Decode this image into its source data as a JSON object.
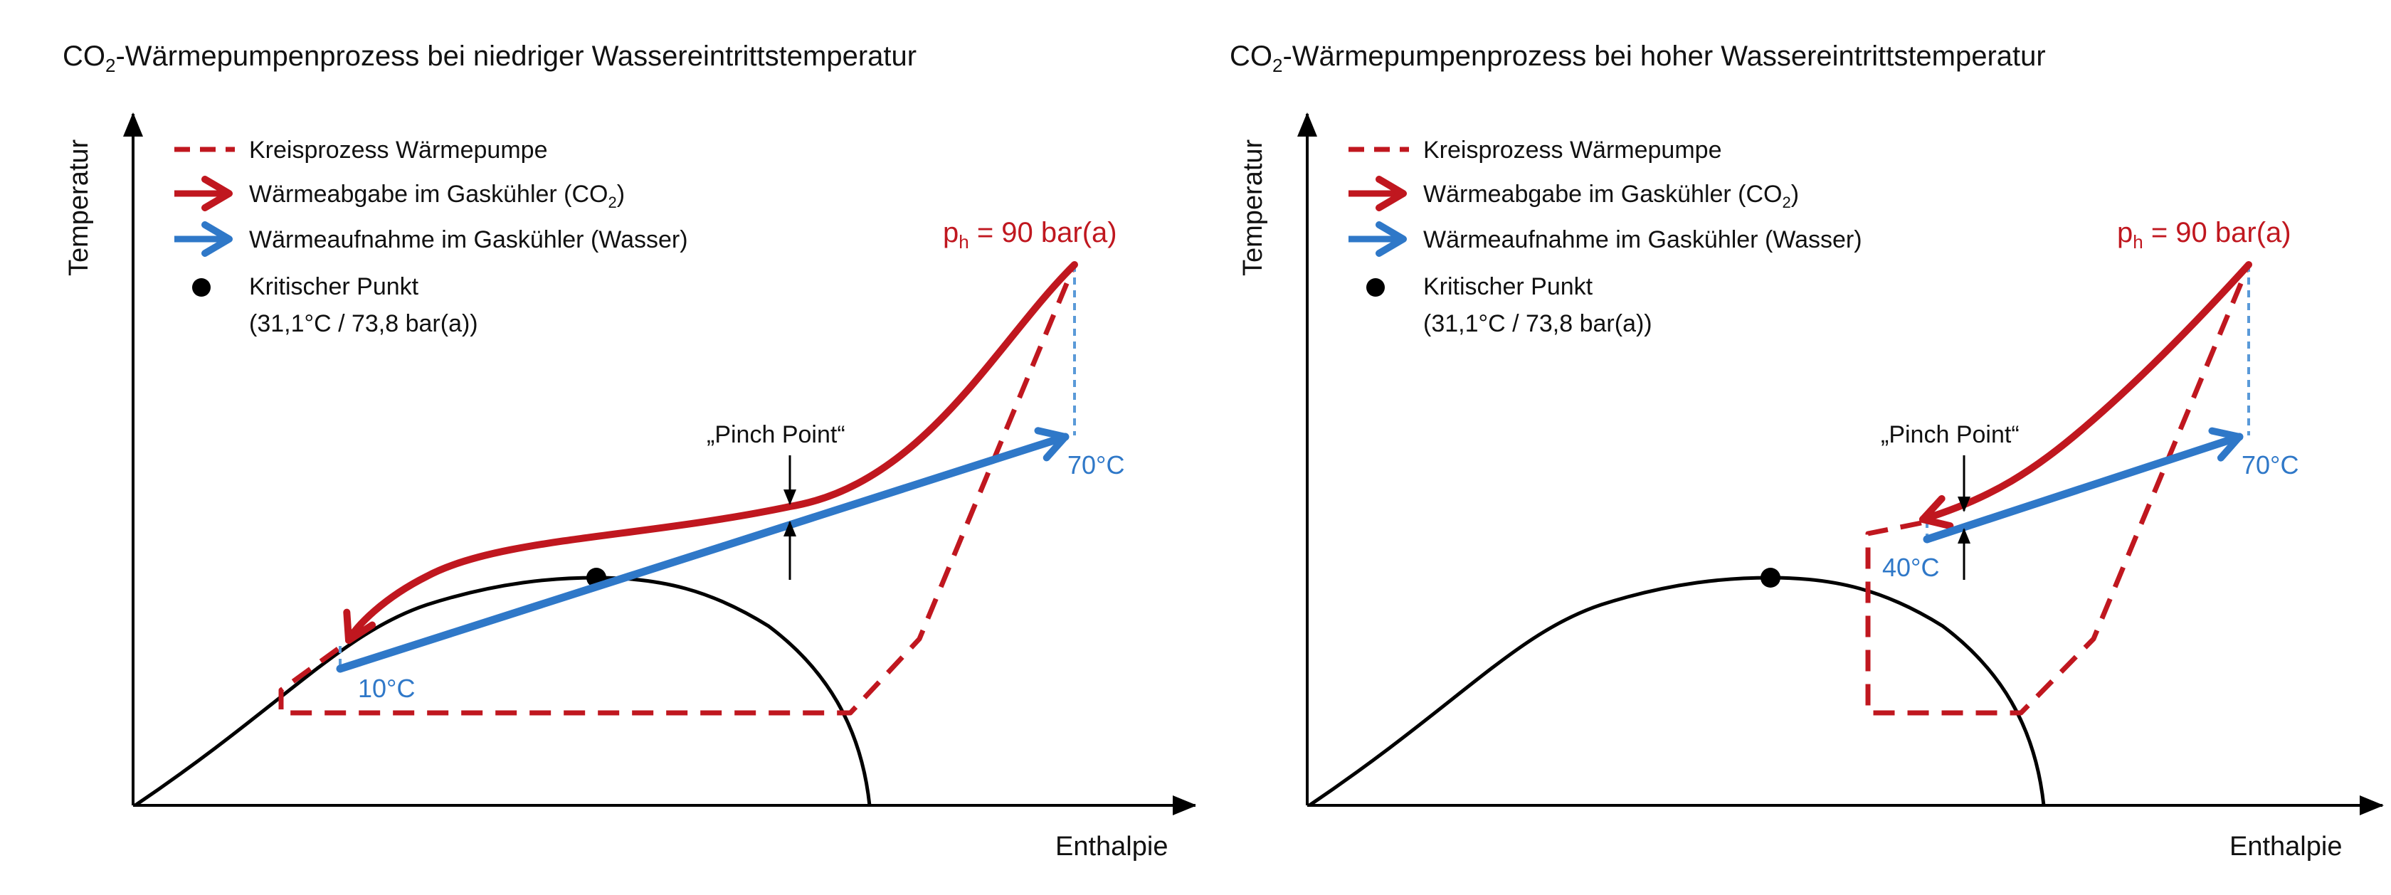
{
  "colors": {
    "process_red": "#c0171f",
    "water_blue": "#2f78c8",
    "dashed_lightblue": "#5a9ad8",
    "axis": "#000000",
    "text": "#111111"
  },
  "panels": [
    {
      "title_main": "CO",
      "title_sub": "2",
      "title_rest": "-Wärmepumpenprozess bei niedriger Wassereintrittstemperatur",
      "y_axis_label": "Temperatur",
      "x_axis_label": "Enthalpie",
      "legend": {
        "process": "Kreisprozess Wärmepumpe",
        "heat_release_main": "Wärmeabgabe im Gaskühler (CO",
        "heat_release_sub": "2",
        "heat_release_end": ")",
        "heat_uptake": "Wärmeaufnahme im Gaskühler (Wasser)",
        "critical_point_line1": "Kritischer Punkt",
        "critical_point_line2": "(31,1°C / 73,8 bar(a))"
      },
      "pressure_main": "p",
      "pressure_sub": "h",
      "pressure_rest": " = 90 bar(a)",
      "pinch_point": "„Pinch Point“",
      "water_in_temp": "10°C",
      "water_out_temp": "70°C"
    },
    {
      "title_main": "CO",
      "title_sub": "2",
      "title_rest": "-Wärmepumpenprozess bei hoher Wassereintrittstemperatur",
      "y_axis_label": "Temperatur",
      "x_axis_label": "Enthalpie",
      "legend": {
        "process": "Kreisprozess Wärmepumpe",
        "heat_release_main": "Wärmeabgabe im Gaskühler (CO",
        "heat_release_sub": "2",
        "heat_release_end": ")",
        "heat_uptake": "Wärmeaufnahme im Gaskühler (Wasser)",
        "critical_point_line1": "Kritischer Punkt",
        "critical_point_line2": "(31,1°C / 73,8 bar(a))"
      },
      "pressure_main": "p",
      "pressure_sub": "h",
      "pressure_rest": " = 90 bar(a)",
      "pinch_point": "„Pinch Point“",
      "water_in_temp": "40°C",
      "water_out_temp": "70°C"
    }
  ]
}
